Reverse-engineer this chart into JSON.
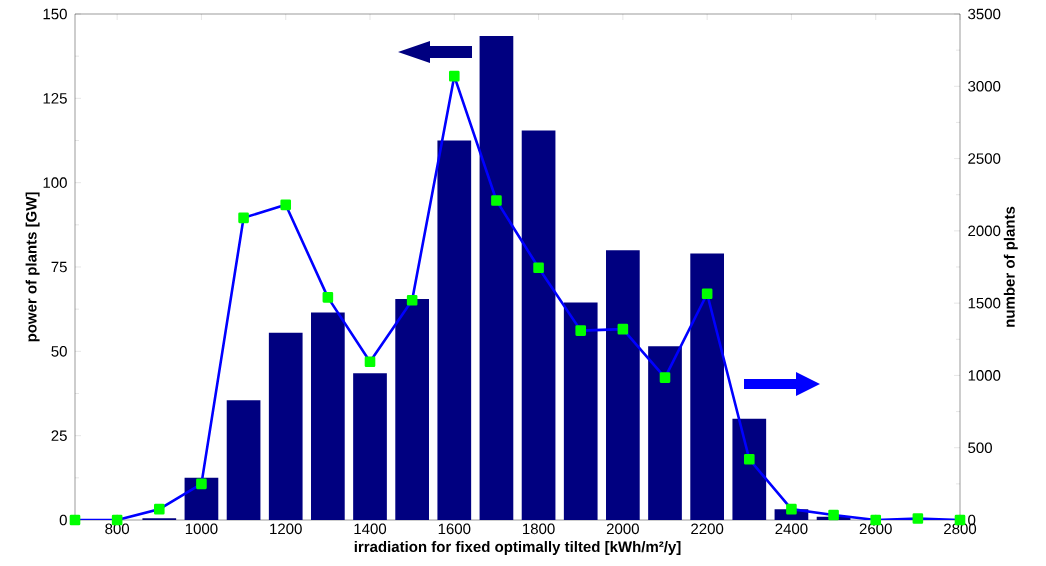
{
  "chart_data": {
    "type": "bar",
    "xlabel": "irradiation for fixed optimally tilted [kWh/m²/y]",
    "ylabel": "power of plants [GW]",
    "y2label": "number of plants",
    "x": [
      700,
      800,
      900,
      1000,
      1100,
      1200,
      1300,
      1400,
      1500,
      1600,
      1700,
      1800,
      1900,
      2000,
      2100,
      2200,
      2300,
      2400,
      2500,
      2600,
      2700,
      2800
    ],
    "series": [
      {
        "axis": "y",
        "color": "#000080",
        "values": [
          0,
          0,
          0.5,
          12.5,
          35.5,
          55.5,
          61.5,
          43.5,
          65.5,
          112.5,
          143.5,
          115.5,
          64.5,
          80,
          51.5,
          79,
          30,
          3.2,
          1,
          0,
          0,
          0
        ]
      },
      {
        "type": "line",
        "axis": "y2",
        "color": "#0000ff",
        "marker": "square",
        "line_style": "solid",
        "values": [
          0,
          0,
          75,
          250,
          2090,
          2180,
          1540,
          1095,
          1520,
          3070,
          2210,
          1745,
          1310,
          1320,
          985,
          1565,
          420,
          75,
          35,
          0,
          10,
          0
        ]
      }
    ],
    "xlim": [
      700,
      2800
    ],
    "xticks": [
      800,
      1000,
      1200,
      1400,
      1600,
      1800,
      2000,
      2200,
      2400,
      2600,
      2800
    ],
    "ylim": [
      0,
      150
    ],
    "yticks": [
      0,
      25,
      50,
      75,
      100,
      125,
      150
    ],
    "y2lim": [
      0,
      3500
    ],
    "y2ticks": [
      0,
      500,
      1000,
      1500,
      2000,
      2500,
      3000,
      3500
    ],
    "grid": false
  }
}
